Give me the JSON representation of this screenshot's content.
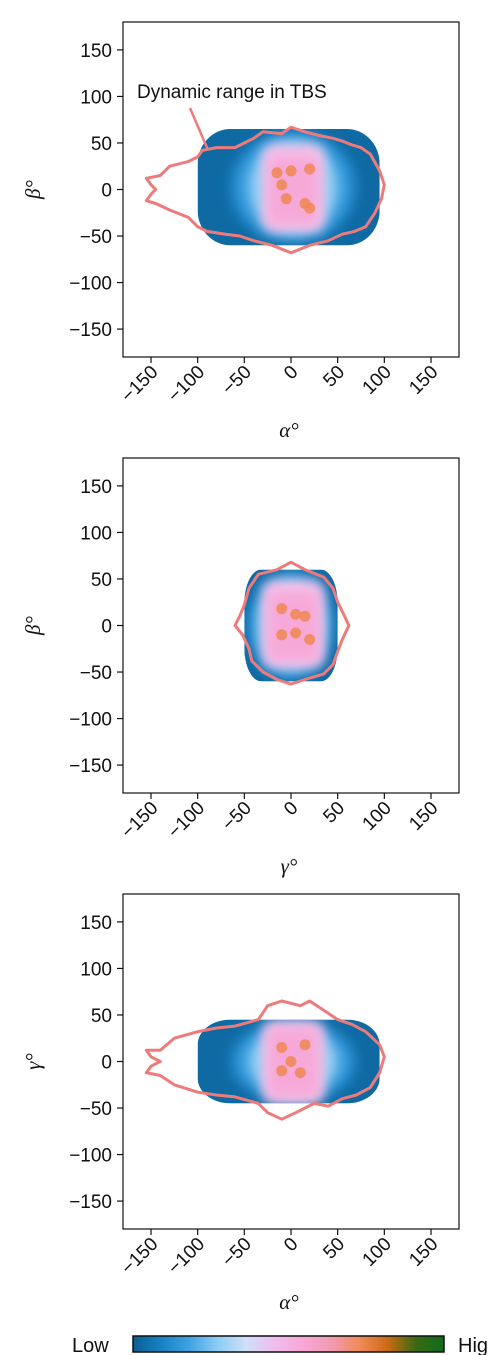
{
  "colors": {
    "density_stops": [
      "#0b5e93",
      "#1683c4",
      "#3fa3e3",
      "#8ccdf4",
      "#cfe0f8",
      "#f1bdee",
      "#f8a7d7",
      "#f29ab4",
      "#f08a5a",
      "#cb6a14",
      "#3b6a12",
      "#0e6a1e"
    ],
    "contour": "#ee7b7b",
    "axes": "#111111"
  },
  "annotation": {
    "text": "Dynamic range in TBS"
  },
  "colorbar": {
    "low_label": "Low",
    "high_label": "High"
  },
  "chart_data": [
    {
      "type": "heatmap",
      "xlabel": "α°",
      "ylabel": "β°",
      "xlim": [
        -180,
        180
      ],
      "ylim": [
        -180,
        180
      ],
      "xticks": [
        -150,
        -100,
        -50,
        0,
        50,
        100,
        150
      ],
      "yticks": [
        150,
        100,
        50,
        0,
        -50,
        -100,
        -150
      ],
      "xtick_labels": [
        "−150",
        "−100",
        "−50",
        "0",
        "50",
        "100",
        "150"
      ],
      "ytick_labels": [
        "150",
        "100",
        "50",
        "0",
        "−50",
        "−100",
        "−150"
      ],
      "grid": false,
      "density_extent": {
        "x": [
          -100,
          95
        ],
        "y": [
          -60,
          65
        ]
      },
      "peaks": [
        [
          -15,
          18
        ],
        [
          0,
          20
        ],
        [
          20,
          22
        ],
        [
          -10,
          5
        ],
        [
          -5,
          -10
        ],
        [
          15,
          -15
        ],
        [
          20,
          -20
        ]
      ],
      "contour_polygon": [
        [
          -155,
          12
        ],
        [
          -140,
          15
        ],
        [
          -130,
          25
        ],
        [
          -110,
          30
        ],
        [
          -100,
          35
        ],
        [
          -95,
          42
        ],
        [
          -80,
          45
        ],
        [
          -60,
          45
        ],
        [
          -50,
          50
        ],
        [
          -40,
          55
        ],
        [
          -30,
          62
        ],
        [
          -10,
          60
        ],
        [
          0,
          67
        ],
        [
          15,
          62
        ],
        [
          30,
          58
        ],
        [
          45,
          55
        ],
        [
          55,
          52
        ],
        [
          65,
          48
        ],
        [
          75,
          45
        ],
        [
          85,
          38
        ],
        [
          95,
          20
        ],
        [
          100,
          5
        ],
        [
          97,
          -10
        ],
        [
          90,
          -25
        ],
        [
          80,
          -40
        ],
        [
          68,
          -45
        ],
        [
          55,
          -48
        ],
        [
          40,
          -55
        ],
        [
          20,
          -60
        ],
        [
          0,
          -68
        ],
        [
          -20,
          -60
        ],
        [
          -40,
          -55
        ],
        [
          -55,
          -50
        ],
        [
          -70,
          -48
        ],
        [
          -90,
          -45
        ],
        [
          -100,
          -40
        ],
        [
          -110,
          -30
        ],
        [
          -130,
          -22
        ],
        [
          -145,
          -15
        ],
        [
          -155,
          -12
        ],
        [
          -150,
          -5
        ],
        [
          -145,
          0
        ],
        [
          -150,
          5
        ]
      ]
    },
    {
      "type": "heatmap",
      "xlabel": "γ°",
      "ylabel": "β°",
      "xlim": [
        -180,
        180
      ],
      "ylim": [
        -180,
        180
      ],
      "xticks": [
        -150,
        -100,
        -50,
        0,
        50,
        100,
        150
      ],
      "yticks": [
        150,
        100,
        50,
        0,
        -50,
        -100,
        -150
      ],
      "xtick_labels": [
        "−150",
        "−100",
        "−50",
        "0",
        "50",
        "100",
        "150"
      ],
      "ytick_labels": [
        "150",
        "100",
        "50",
        "0",
        "−50",
        "−100",
        "−150"
      ],
      "grid": false,
      "density_extent": {
        "x": [
          -50,
          50
        ],
        "y": [
          -60,
          60
        ]
      },
      "peaks": [
        [
          -10,
          18
        ],
        [
          5,
          12
        ],
        [
          15,
          10
        ],
        [
          -10,
          -10
        ],
        [
          5,
          -8
        ],
        [
          20,
          -15
        ]
      ],
      "contour_polygon": [
        [
          -45,
          40
        ],
        [
          -35,
          55
        ],
        [
          -15,
          60
        ],
        [
          0,
          68
        ],
        [
          15,
          60
        ],
        [
          35,
          52
        ],
        [
          45,
          40
        ],
        [
          50,
          25
        ],
        [
          55,
          15
        ],
        [
          62,
          0
        ],
        [
          55,
          -15
        ],
        [
          50,
          -28
        ],
        [
          45,
          -42
        ],
        [
          35,
          -52
        ],
        [
          15,
          -58
        ],
        [
          0,
          -63
        ],
        [
          -15,
          -58
        ],
        [
          -30,
          -50
        ],
        [
          -42,
          -38
        ],
        [
          -45,
          -25
        ],
        [
          -52,
          -10
        ],
        [
          -60,
          0
        ],
        [
          -55,
          10
        ],
        [
          -50,
          22
        ]
      ]
    },
    {
      "type": "heatmap",
      "xlabel": "α°",
      "ylabel": "γ°",
      "xlim": [
        -180,
        180
      ],
      "ylim": [
        -180,
        180
      ],
      "xticks": [
        -150,
        -100,
        -50,
        0,
        50,
        100,
        150
      ],
      "yticks": [
        150,
        100,
        50,
        0,
        -50,
        -100,
        -150
      ],
      "xtick_labels": [
        "−150",
        "−100",
        "−50",
        "0",
        "50",
        "100",
        "150"
      ],
      "ytick_labels": [
        "150",
        "100",
        "50",
        "0",
        "−50",
        "−100",
        "−150"
      ],
      "grid": false,
      "density_extent": {
        "x": [
          -100,
          95
        ],
        "y": [
          -45,
          45
        ]
      },
      "peaks": [
        [
          -10,
          15
        ],
        [
          15,
          18
        ],
        [
          0,
          0
        ],
        [
          -10,
          -10
        ],
        [
          10,
          -12
        ]
      ],
      "contour_polygon": [
        [
          -155,
          12
        ],
        [
          -140,
          12
        ],
        [
          -125,
          25
        ],
        [
          -100,
          32
        ],
        [
          -80,
          36
        ],
        [
          -60,
          38
        ],
        [
          -35,
          45
        ],
        [
          -25,
          60
        ],
        [
          -10,
          65
        ],
        [
          10,
          60
        ],
        [
          20,
          65
        ],
        [
          35,
          55
        ],
        [
          50,
          45
        ],
        [
          65,
          40
        ],
        [
          80,
          32
        ],
        [
          95,
          18
        ],
        [
          100,
          5
        ],
        [
          95,
          -12
        ],
        [
          85,
          -28
        ],
        [
          70,
          -36
        ],
        [
          55,
          -40
        ],
        [
          40,
          -48
        ],
        [
          25,
          -45
        ],
        [
          15,
          -50
        ],
        [
          5,
          -55
        ],
        [
          -10,
          -62
        ],
        [
          -25,
          -55
        ],
        [
          -35,
          -45
        ],
        [
          -60,
          -38
        ],
        [
          -80,
          -36
        ],
        [
          -100,
          -33
        ],
        [
          -125,
          -25
        ],
        [
          -140,
          -15
        ],
        [
          -155,
          -12
        ],
        [
          -150,
          -5
        ],
        [
          -140,
          0
        ],
        [
          -150,
          5
        ]
      ]
    }
  ]
}
